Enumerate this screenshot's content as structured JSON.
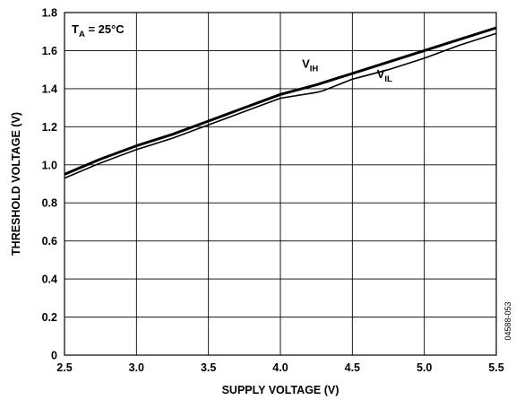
{
  "chart_data": {
    "type": "line",
    "title": "",
    "xlabel": "SUPPLY VOLTAGE (V)",
    "ylabel": "THRESHOLD VOLTAGE (V)",
    "xlim": [
      2.5,
      5.5
    ],
    "ylim": [
      0,
      1.8
    ],
    "grid": true,
    "x_ticks": [
      "2.5",
      "3.0",
      "3.5",
      "4.0",
      "4.5",
      "5.0",
      "5.5"
    ],
    "y_ticks": [
      "0",
      "0.2",
      "0.4",
      "0.6",
      "0.8",
      "1.0",
      "1.2",
      "1.4",
      "1.6",
      "1.8"
    ],
    "annotation": {
      "main": "T",
      "sub": "A",
      "rest": " = 25°C"
    },
    "figure_id": "04588-053",
    "series": [
      {
        "name": "V_IH",
        "label_main": "V",
        "label_sub": "IH",
        "x": [
          2.5,
          2.75,
          3.0,
          3.25,
          3.5,
          3.75,
          4.0,
          4.25,
          4.5,
          4.75,
          5.0,
          5.25,
          5.5
        ],
        "y": [
          0.95,
          1.03,
          1.1,
          1.16,
          1.23,
          1.3,
          1.37,
          1.42,
          1.48,
          1.54,
          1.6,
          1.66,
          1.72
        ]
      },
      {
        "name": "V_IL",
        "label_main": "V",
        "label_sub": "IL",
        "x": [
          2.5,
          2.75,
          3.0,
          3.25,
          3.5,
          3.75,
          4.0,
          4.25,
          4.3,
          4.5,
          4.75,
          5.0,
          5.25,
          5.5
        ],
        "y": [
          0.93,
          1.01,
          1.08,
          1.14,
          1.21,
          1.28,
          1.35,
          1.38,
          1.39,
          1.45,
          1.5,
          1.56,
          1.63,
          1.69
        ]
      }
    ]
  }
}
